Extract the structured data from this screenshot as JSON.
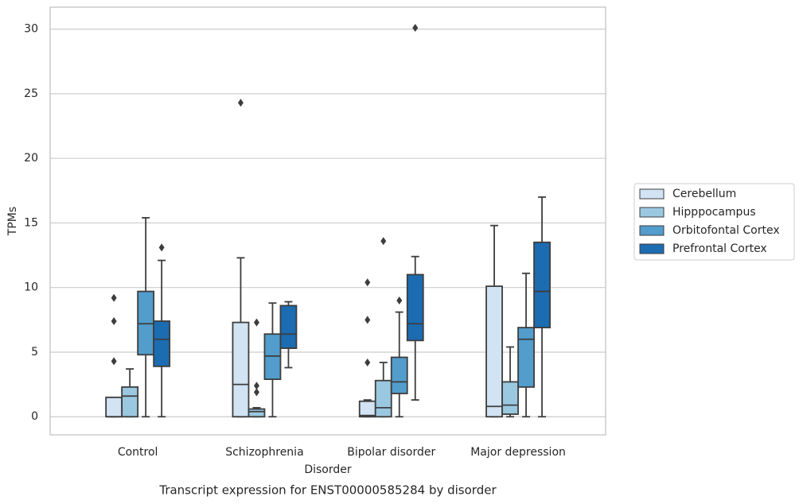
{
  "chart_data": {
    "type": "box",
    "title": "Transcript expression for ENST00000585284 by disorder",
    "x_label": "Disorder",
    "y_label": "TPMs",
    "categories": [
      "Control",
      "Schizophrenia",
      "Bipolar disorder",
      "Major depression"
    ],
    "ylim": [
      -1.4,
      31.7
    ],
    "yticks": [
      0,
      5,
      10,
      15,
      20,
      25,
      30
    ],
    "grid": true,
    "legend": "right",
    "series": [
      {
        "name": "Cerebellum",
        "color": "#d2e3f3",
        "values": [
          {
            "whislo": 0,
            "q1": 0,
            "med": 0,
            "q3": 1.5,
            "whishi": 1.5,
            "fliers": [
              4.3,
              7.4,
              9.2
            ]
          },
          {
            "whislo": 0,
            "q1": 0,
            "med": 2.5,
            "q3": 7.3,
            "whishi": 12.3,
            "fliers": [
              24.3
            ]
          },
          {
            "whislo": 0,
            "q1": 0,
            "med": 0.1,
            "q3": 1.2,
            "whishi": 1.3,
            "fliers": [
              4.2,
              7.5,
              10.4
            ]
          },
          {
            "whislo": 0,
            "q1": 0,
            "med": 0.8,
            "q3": 10.1,
            "whishi": 14.8,
            "fliers": []
          }
        ]
      },
      {
        "name": "Hipppocampus",
        "color": "#9ac8e0",
        "values": [
          {
            "whislo": 0,
            "q1": 0,
            "med": 1.6,
            "q3": 2.3,
            "whishi": 3.7,
            "fliers": []
          },
          {
            "whislo": 0,
            "q1": 0,
            "med": 0.4,
            "q3": 0.6,
            "whishi": 0.7,
            "fliers": [
              1.9,
              2.4,
              7.3
            ]
          },
          {
            "whislo": 0,
            "q1": 0,
            "med": 0.7,
            "q3": 2.8,
            "whishi": 4.2,
            "fliers": [
              13.6
            ]
          },
          {
            "whislo": 0,
            "q1": 0.2,
            "med": 0.9,
            "q3": 2.7,
            "whishi": 5.4,
            "fliers": []
          }
        ]
      },
      {
        "name": "Orbitofontal Cortex",
        "color": "#529dcc",
        "values": [
          {
            "whislo": 0,
            "q1": 4.8,
            "med": 7.2,
            "q3": 9.7,
            "whishi": 15.4,
            "fliers": []
          },
          {
            "whislo": 0,
            "q1": 2.9,
            "med": 4.7,
            "q3": 6.4,
            "whishi": 8.8,
            "fliers": []
          },
          {
            "whislo": 0,
            "q1": 1.8,
            "med": 2.7,
            "q3": 4.6,
            "whishi": 8.1,
            "fliers": [
              9.0
            ]
          },
          {
            "whislo": 0,
            "q1": 2.3,
            "med": 6.0,
            "q3": 6.9,
            "whishi": 11.1,
            "fliers": []
          }
        ]
      },
      {
        "name": "Prefrontal Cortex",
        "color": "#1c6cb1",
        "values": [
          {
            "whislo": 0,
            "q1": 3.9,
            "med": 6.0,
            "q3": 7.4,
            "whishi": 12.1,
            "fliers": [
              13.1
            ]
          },
          {
            "whislo": 3.8,
            "q1": 5.3,
            "med": 6.4,
            "q3": 8.6,
            "whishi": 8.9,
            "fliers": []
          },
          {
            "whislo": 1.3,
            "q1": 5.9,
            "med": 7.2,
            "q3": 11.0,
            "whishi": 12.4,
            "fliers": [
              30.1
            ]
          },
          {
            "whislo": 0,
            "q1": 6.9,
            "med": 9.7,
            "q3": 13.5,
            "whishi": 17.0,
            "fliers": []
          }
        ]
      }
    ]
  }
}
